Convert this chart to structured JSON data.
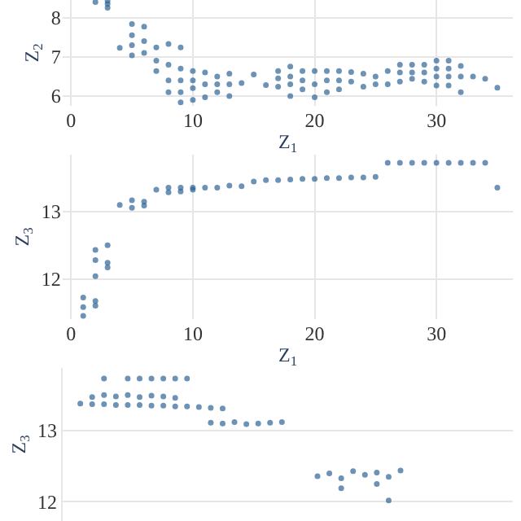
{
  "chart_data": [
    {
      "type": "scatter",
      "xlabel": "Z$_{1}$",
      "ylabel": "Z$_{2}$",
      "marker": "circle",
      "grid": true,
      "xlim": [
        -0.7,
        36.3
      ],
      "xticks": [
        0,
        10,
        20,
        30
      ],
      "ylim": [
        5.75,
        8.45
      ],
      "yticks": [
        6,
        7,
        8
      ],
      "series": [
        {
          "color": "#2e6496",
          "x": [
            2,
            3,
            3,
            3,
            4,
            5,
            5,
            5,
            5,
            6,
            6,
            6,
            7,
            7,
            7,
            8,
            8,
            8,
            8,
            9,
            9,
            9,
            9,
            9,
            10,
            10,
            10,
            10,
            11,
            11,
            11,
            12,
            12,
            12,
            13,
            13,
            13,
            14,
            15,
            16,
            17,
            17,
            17,
            18,
            18,
            18,
            18,
            19,
            19,
            19,
            20,
            20,
            20,
            21,
            21,
            21,
            22,
            22,
            22,
            23,
            23,
            24,
            24,
            25,
            25,
            26,
            26,
            27,
            27,
            27,
            28,
            28,
            28,
            29,
            29,
            29,
            30,
            30,
            30,
            30,
            31,
            31,
            31,
            31,
            32,
            32,
            32,
            33,
            34,
            35
          ],
          "values": [
            8.4,
            8.25,
            8.35,
            8.43,
            7.23,
            7.04,
            7.3,
            7.55,
            7.84,
            7.1,
            7.4,
            7.77,
            6.64,
            6.9,
            7.24,
            6.1,
            6.4,
            6.8,
            7.33,
            5.84,
            6.1,
            6.4,
            6.7,
            7.24,
            5.9,
            6.2,
            6.4,
            6.64,
            5.97,
            6.3,
            6.6,
            6.1,
            6.3,
            6.5,
            6.0,
            6.3,
            6.57,
            6.33,
            6.55,
            6.28,
            6.24,
            6.45,
            6.64,
            6.0,
            6.3,
            6.5,
            6.75,
            6.17,
            6.4,
            6.64,
            5.97,
            6.3,
            6.64,
            6.1,
            6.4,
            6.64,
            6.17,
            6.4,
            6.64,
            6.37,
            6.61,
            6.24,
            6.57,
            6.3,
            6.5,
            6.3,
            6.64,
            6.37,
            6.6,
            6.8,
            6.44,
            6.6,
            6.8,
            6.37,
            6.6,
            6.8,
            6.27,
            6.5,
            6.7,
            6.9,
            6.27,
            6.5,
            6.7,
            6.9,
            6.1,
            6.5,
            6.77,
            6.5,
            6.44,
            6.21
          ]
        }
      ]
    },
    {
      "type": "scatter",
      "xlabel": "Z$_{1}$",
      "ylabel": "Z$_{3}$",
      "marker": "circle",
      "grid": true,
      "xlim": [
        -0.7,
        36.3
      ],
      "xticks": [
        0,
        10,
        20,
        30
      ],
      "ylim": [
        11.4,
        13.85
      ],
      "yticks": [
        12,
        13
      ],
      "series": [
        {
          "color": "#2e6496",
          "x": [
            1,
            1,
            1,
            2,
            2,
            2,
            2,
            2,
            3,
            3,
            3,
            4,
            5,
            5,
            6,
            6,
            7,
            8,
            8,
            9,
            9,
            10,
            10,
            11,
            12,
            13,
            14,
            15,
            16,
            17,
            18,
            19,
            20,
            21,
            22,
            23,
            24,
            25,
            26,
            27,
            28,
            29,
            30,
            31,
            32,
            33,
            34,
            35
          ],
          "values": [
            11.45,
            11.58,
            11.72,
            11.6,
            11.67,
            12.04,
            12.28,
            12.43,
            12.17,
            12.24,
            12.5,
            13.1,
            13.06,
            13.17,
            13.09,
            13.15,
            13.33,
            13.29,
            13.36,
            13.3,
            13.36,
            13.33,
            13.36,
            13.36,
            13.36,
            13.39,
            13.38,
            13.45,
            13.47,
            13.47,
            13.48,
            13.49,
            13.49,
            13.5,
            13.5,
            13.51,
            13.51,
            13.52,
            13.73,
            13.73,
            13.73,
            13.73,
            13.73,
            13.73,
            13.73,
            13.73,
            13.73,
            13.36
          ]
        }
      ]
    },
    {
      "type": "scatter",
      "ylabel": "Z$_{3}$",
      "marker": "circle",
      "grid": "y",
      "tick_labels": "y",
      "categories": [
        null,
        null,
        null,
        null,
        null,
        null,
        null,
        null,
        null,
        null,
        null,
        null,
        null,
        null,
        null,
        null,
        null,
        null,
        null,
        null,
        null,
        null,
        null,
        null,
        null,
        null,
        null,
        null,
        null,
        null,
        null,
        null,
        null,
        null,
        null,
        null,
        null,
        null
      ],
      "ylim": [
        11.73,
        13.88
      ],
      "yticks": [
        12,
        13
      ],
      "series": [
        {
          "color": "#2e6496",
          "values": [
            null,
            null,
            null,
            13.73,
            null,
            13.73,
            13.73,
            13.73,
            13.73,
            13.73,
            13.73,
            null,
            null,
            null,
            null,
            null,
            null,
            null,
            null,
            null,
            null,
            null,
            null,
            null,
            null,
            null,
            null,
            null,
            null,
            null,
            null,
            null,
            null,
            null,
            null,
            null,
            null,
            null
          ]
        },
        {
          "color": "#2e6496",
          "values": [
            null,
            null,
            13.47,
            13.5,
            13.48,
            13.5,
            13.47,
            13.49,
            13.48,
            13.46,
            null,
            null,
            null,
            null,
            null,
            null,
            null,
            null,
            null,
            null,
            null,
            null,
            null,
            null,
            null,
            null,
            null,
            null,
            null,
            null,
            null,
            null,
            null,
            null,
            null,
            null,
            null,
            null
          ]
        },
        {
          "color": "#2e6496",
          "values": [
            null,
            13.38,
            13.37,
            13.37,
            13.36,
            13.36,
            13.36,
            13.35,
            13.35,
            13.34,
            13.34,
            13.33,
            13.32,
            13.31,
            null,
            null,
            null,
            null,
            null,
            null,
            null,
            null,
            null,
            null,
            null,
            null,
            null,
            null,
            null,
            null,
            null,
            null,
            null,
            null,
            null,
            null,
            null,
            null
          ]
        },
        {
          "color": "#2e6496",
          "values": [
            null,
            null,
            null,
            null,
            null,
            null,
            null,
            null,
            null,
            null,
            null,
            null,
            13.11,
            13.1,
            13.12,
            13.09,
            13.1,
            13.11,
            13.12,
            null,
            null,
            null,
            null,
            null,
            null,
            null,
            null,
            null,
            null,
            null,
            null,
            null,
            null,
            null,
            null,
            null,
            null,
            null
          ]
        },
        {
          "color": "#2e6496",
          "values": [
            null,
            null,
            null,
            null,
            null,
            null,
            null,
            null,
            null,
            null,
            null,
            null,
            null,
            null,
            null,
            null,
            null,
            null,
            null,
            null,
            null,
            12.36,
            12.4,
            12.33,
            12.43,
            12.38,
            12.41,
            12.35,
            12.44,
            null,
            null,
            null,
            null,
            null,
            null,
            null,
            null,
            null
          ]
        },
        {
          "color": "#2e6496",
          "values": [
            null,
            null,
            null,
            null,
            null,
            null,
            null,
            null,
            null,
            null,
            null,
            null,
            null,
            null,
            null,
            null,
            null,
            null,
            null,
            null,
            null,
            null,
            null,
            12.19,
            null,
            null,
            12.25,
            12.02,
            null,
            null,
            null,
            null,
            null,
            null,
            null,
            null,
            null,
            null
          ]
        }
      ]
    }
  ]
}
